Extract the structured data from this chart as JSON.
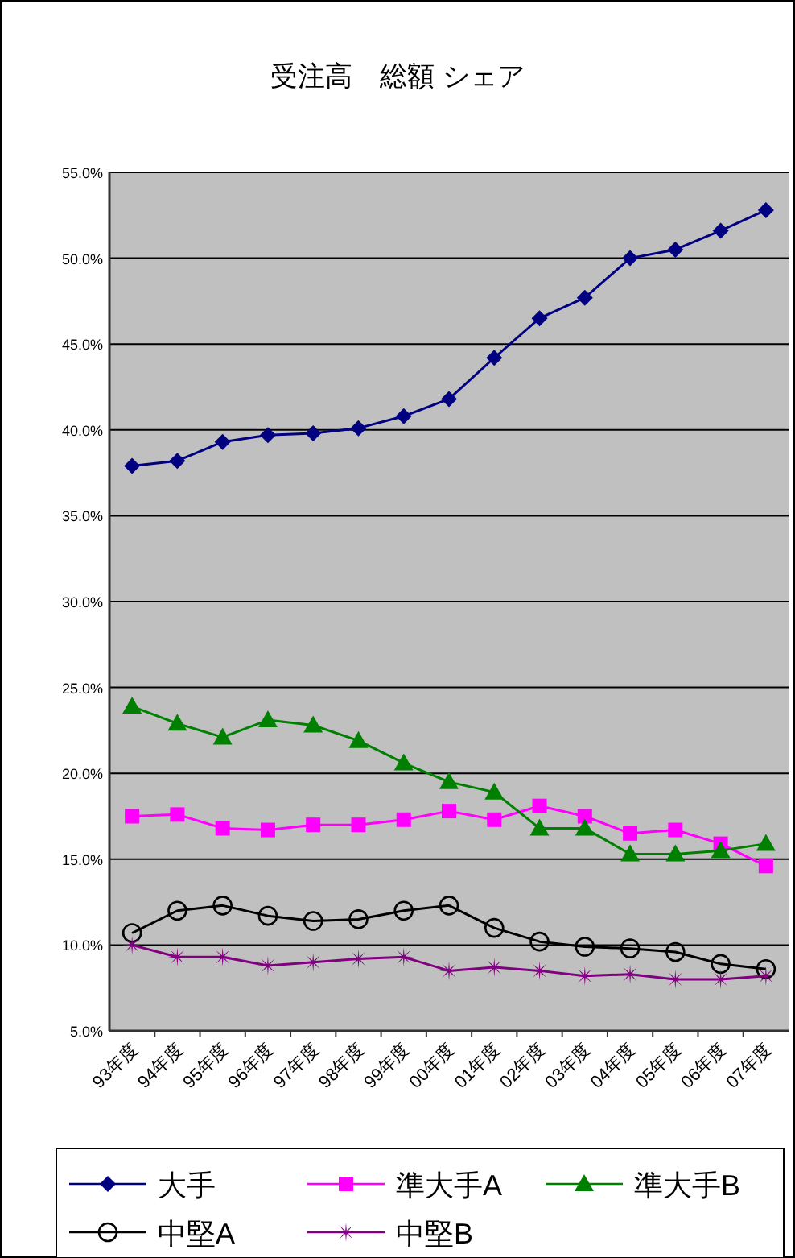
{
  "chart_data": {
    "type": "line",
    "title": "受注高　総額  シェア",
    "categories": [
      "93年度",
      "94年度",
      "95年度",
      "96年度",
      "97年度",
      "98年度",
      "99年度",
      "00年度",
      "01年度",
      "02年度",
      "03年度",
      "04年度",
      "05年度",
      "06年度",
      "07年度"
    ],
    "series": [
      {
        "name": "大手",
        "color": "#000080",
        "marker": "diamond",
        "values": [
          37.9,
          38.2,
          39.3,
          39.7,
          39.8,
          40.1,
          40.8,
          41.8,
          44.2,
          46.5,
          47.7,
          50.0,
          50.5,
          51.6,
          52.8
        ]
      },
      {
        "name": "準大手A",
        "color": "#ff00ff",
        "marker": "square",
        "values": [
          17.5,
          17.6,
          16.8,
          16.7,
          17.0,
          17.0,
          17.3,
          17.8,
          17.3,
          18.1,
          17.5,
          16.5,
          16.7,
          15.9,
          14.6
        ]
      },
      {
        "name": "準大手B",
        "color": "#008000",
        "marker": "triangle",
        "values": [
          23.9,
          22.9,
          22.1,
          23.1,
          22.8,
          21.9,
          20.6,
          19.5,
          18.9,
          16.8,
          16.8,
          15.3,
          15.3,
          15.5,
          15.9
        ]
      },
      {
        "name": "中堅A",
        "color": "#000000",
        "marker": "circle",
        "values": [
          10.7,
          12.0,
          12.3,
          11.7,
          11.4,
          11.5,
          12.0,
          12.3,
          11.0,
          10.2,
          9.9,
          9.8,
          9.6,
          8.9,
          8.6
        ]
      },
      {
        "name": "中堅B",
        "color": "#800080",
        "marker": "star",
        "values": [
          10.0,
          9.3,
          9.3,
          8.8,
          9.0,
          9.2,
          9.3,
          8.5,
          8.7,
          8.5,
          8.2,
          8.3,
          8.0,
          8.0,
          8.2
        ]
      }
    ],
    "ylim": [
      5,
      55
    ],
    "yticks": [
      {
        "value": 5,
        "label": "5.0%"
      },
      {
        "value": 10,
        "label": "10.0%"
      },
      {
        "value": 15,
        "label": "15.0%"
      },
      {
        "value": 20,
        "label": "20.0%"
      },
      {
        "value": 25,
        "label": "25.0%"
      },
      {
        "value": 30,
        "label": "30.0%"
      },
      {
        "value": 35,
        "label": "35.0%"
      },
      {
        "value": 40,
        "label": "40.0%"
      },
      {
        "value": 45,
        "label": "45.0%"
      },
      {
        "value": 50,
        "label": "50.0%"
      },
      {
        "value": 55,
        "label": "55.0%"
      }
    ],
    "grid": "y",
    "legend": "bottom",
    "line_style": "solid"
  }
}
